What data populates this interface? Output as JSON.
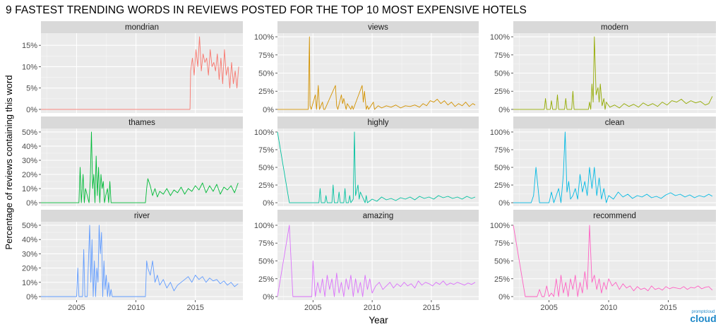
{
  "title": "9 FASTEST TRENDING WORDS IN REVIEWS POSTED FOR THE TOP 10 MOST EXPENSIVE HOTELS",
  "logo_text": "cloud",
  "logo_small": "promptcloud",
  "colors": {
    "panel_bg": "#ebebeb",
    "strip_bg": "#d9d9d9",
    "grid_major": "#ffffff",
    "axis_text": "#4d4d4d"
  },
  "chart_data": {
    "type": "line",
    "xlabel": "Year",
    "ylabel": "Percentage of reviews containing this word",
    "xlim": [
      2002,
      2019
    ],
    "x_ticks": [
      2005,
      2010,
      2015
    ],
    "x_tick_labels": [
      "2005",
      "2010",
      "2015"
    ],
    "facets": [
      {
        "name": "mondrian",
        "color": "#F8766D",
        "ylim": [
          0,
          17
        ],
        "y_ticks": [
          0,
          5,
          10,
          15
        ],
        "y_tick_labels": [
          "0%",
          "5%",
          "10%",
          "15%"
        ],
        "x": [
          2002,
          2014.55,
          2014.6,
          2014.75,
          2014.9,
          2015.05,
          2015.2,
          2015.35,
          2015.5,
          2015.65,
          2015.8,
          2015.95,
          2016.1,
          2016.25,
          2016.4,
          2016.55,
          2016.7,
          2016.85,
          2017,
          2017.15,
          2017.3,
          2017.45,
          2017.6,
          2017.75,
          2017.9,
          2018.05,
          2018.2,
          2018.35,
          2018.5,
          2018.65
        ],
        "y": [
          0,
          0,
          9,
          12,
          8,
          14,
          10,
          17,
          9,
          13,
          11,
          12,
          8,
          14,
          10,
          11,
          9,
          13,
          7,
          12,
          6,
          14,
          8,
          10,
          5,
          11,
          6,
          9,
          5,
          10
        ]
      },
      {
        "name": "views",
        "color": "#D39200",
        "ylim": [
          0,
          100
        ],
        "y_ticks": [
          0,
          25,
          50,
          75,
          100
        ],
        "y_tick_labels": [
          "0%",
          "25%",
          "50%",
          "75%",
          "100%"
        ],
        "x": [
          2002,
          2004.6,
          2004.7,
          2004.75,
          2004.85,
          2005.2,
          2005.3,
          2005.45,
          2005.55,
          2005.8,
          2005.9,
          2006,
          2006.9,
          2007,
          2007.1,
          2007.4,
          2007.5,
          2007.6,
          2007.8,
          2007.9,
          2008.2,
          2008.3,
          2008.4,
          2009.15,
          2009.25,
          2009.35,
          2009.5,
          2009.6,
          2009.7,
          2010.1,
          2010.2,
          2010.5,
          2010.8,
          2011.2,
          2011.6,
          2012,
          2012.4,
          2012.8,
          2013.2,
          2013.6,
          2014,
          2014.3,
          2014.6,
          2014.9,
          2015.2,
          2015.5,
          2015.8,
          2016.1,
          2016.4,
          2016.7,
          2017,
          2017.3,
          2017.6,
          2017.9,
          2018.2,
          2018.5,
          2018.7
        ],
        "y": [
          0,
          0,
          100,
          5,
          0,
          20,
          0,
          33,
          0,
          10,
          0,
          0,
          33,
          5,
          0,
          20,
          8,
          15,
          0,
          8,
          0,
          5,
          0,
          33,
          10,
          25,
          0,
          5,
          0,
          10,
          0,
          5,
          2,
          5,
          3,
          6,
          2,
          5,
          4,
          6,
          3,
          8,
          5,
          12,
          10,
          14,
          8,
          12,
          6,
          10,
          4,
          8,
          5,
          10,
          4,
          8,
          6
        ]
      },
      {
        "name": "modern",
        "color": "#93AA00",
        "ylim": [
          0,
          100
        ],
        "y_ticks": [
          0,
          25,
          50,
          75,
          100
        ],
        "y_tick_labels": [
          "0%",
          "25%",
          "50%",
          "75%",
          "100%"
        ],
        "x": [
          2002,
          2004.6,
          2004.7,
          2004.8,
          2005.1,
          2005.2,
          2005.3,
          2005.6,
          2005.7,
          2005.8,
          2006.3,
          2006.4,
          2006.5,
          2006.9,
          2007,
          2007.1,
          2008.3,
          2008.4,
          2008.5,
          2008.6,
          2008.7,
          2008.8,
          2008.95,
          2009.1,
          2009.2,
          2009.3,
          2009.45,
          2009.6,
          2009.7,
          2009.8,
          2010.1,
          2010.5,
          2010.9,
          2011.3,
          2011.7,
          2012.1,
          2012.5,
          2012.9,
          2013.3,
          2013.7,
          2014.1,
          2014.5,
          2014.9,
          2015.3,
          2015.7,
          2016.1,
          2016.5,
          2016.9,
          2017.3,
          2017.7,
          2018.1,
          2018.4,
          2018.7
        ],
        "y": [
          0,
          0,
          15,
          0,
          0,
          12,
          0,
          0,
          20,
          0,
          0,
          15,
          0,
          0,
          25,
          0,
          0,
          10,
          0,
          35,
          10,
          100,
          20,
          30,
          10,
          35,
          5,
          15,
          0,
          10,
          3,
          6,
          2,
          8,
          4,
          7,
          3,
          9,
          5,
          8,
          4,
          10,
          6,
          12,
          10,
          14,
          8,
          12,
          9,
          11,
          6,
          8,
          18
        ]
      },
      {
        "name": "thames",
        "color": "#00BA38",
        "ylim": [
          0,
          50
        ],
        "y_ticks": [
          0,
          10,
          20,
          30,
          40,
          50
        ],
        "y_tick_labels": [
          "0%",
          "10%",
          "20%",
          "30%",
          "40%",
          "50%"
        ],
        "x": [
          2002,
          2005.2,
          2005.3,
          2005.4,
          2005.55,
          2005.65,
          2005.75,
          2006.05,
          2006.15,
          2006.25,
          2006.35,
          2006.45,
          2006.55,
          2006.65,
          2006.75,
          2006.85,
          2006.95,
          2007.05,
          2007.15,
          2007.25,
          2007.35,
          2007.45,
          2007.6,
          2007.7,
          2007.8,
          2007.9,
          2008.1,
          2010.8,
          2010.9,
          2011,
          2011.2,
          2011.4,
          2011.6,
          2011.8,
          2012,
          2012.3,
          2012.6,
          2012.9,
          2013.2,
          2013.5,
          2013.8,
          2014.1,
          2014.4,
          2014.7,
          2015,
          2015.3,
          2015.6,
          2015.9,
          2016.2,
          2016.5,
          2016.8,
          2017.1,
          2017.4,
          2017.7,
          2018,
          2018.3,
          2018.6
        ],
        "y": [
          0,
          0,
          25,
          0,
          20,
          0,
          10,
          0,
          15,
          50,
          10,
          20,
          0,
          33,
          5,
          25,
          0,
          20,
          10,
          15,
          0,
          5,
          10,
          0,
          15,
          0,
          0,
          0,
          10,
          17,
          12,
          5,
          10,
          4,
          8,
          6,
          10,
          5,
          9,
          7,
          11,
          6,
          10,
          8,
          12,
          9,
          14,
          7,
          12,
          8,
          13,
          6,
          11,
          9,
          12,
          7,
          14
        ]
      },
      {
        "name": "highly",
        "color": "#00C19F",
        "ylim": [
          0,
          100
        ],
        "y_ticks": [
          0,
          25,
          50,
          75,
          100
        ],
        "y_tick_labels": [
          "0%",
          "25%",
          "50%",
          "75%",
          "100%"
        ],
        "x": [
          2002,
          2003,
          2005.5,
          2005.6,
          2005.7,
          2006,
          2006.1,
          2006.2,
          2006.6,
          2006.7,
          2006.8,
          2007.1,
          2007.2,
          2007.3,
          2007.6,
          2007.7,
          2007.8,
          2008,
          2008.1,
          2008.2,
          2008.4,
          2008.5,
          2008.6,
          2008.8,
          2008.9,
          2009,
          2009.4,
          2009.5,
          2009.6,
          2010,
          2010.4,
          2010.8,
          2011.2,
          2011.6,
          2012,
          2012.4,
          2012.8,
          2013.2,
          2013.6,
          2014,
          2014.4,
          2014.8,
          2015.2,
          2015.6,
          2016,
          2016.4,
          2016.8,
          2017.2,
          2017.6,
          2018,
          2018.4,
          2018.7
        ],
        "y": [
          100,
          0,
          0,
          20,
          0,
          0,
          10,
          0,
          0,
          25,
          0,
          0,
          15,
          0,
          0,
          20,
          0,
          0,
          10,
          0,
          5,
          100,
          10,
          25,
          5,
          15,
          0,
          10,
          0,
          5,
          2,
          8,
          4,
          6,
          3,
          7,
          5,
          8,
          4,
          9,
          6,
          8,
          5,
          10,
          7,
          9,
          6,
          8,
          5,
          9,
          6,
          8
        ]
      },
      {
        "name": "clean",
        "color": "#00B9E3",
        "ylim": [
          0,
          100
        ],
        "y_ticks": [
          0,
          25,
          50,
          75,
          100
        ],
        "y_tick_labels": [
          "0%",
          "25%",
          "50%",
          "75%",
          "100%"
        ],
        "x": [
          2002,
          2003.5,
          2003.7,
          2003.9,
          2004.2,
          2005,
          2005.2,
          2005.4,
          2005.6,
          2005.8,
          2006,
          2006.2,
          2006.35,
          2006.5,
          2006.65,
          2006.8,
          2007,
          2007.2,
          2007.4,
          2007.6,
          2007.8,
          2008,
          2008.2,
          2008.4,
          2008.6,
          2008.8,
          2009,
          2009.2,
          2009.4,
          2009.6,
          2009.8,
          2010,
          2010.4,
          2010.8,
          2011.2,
          2011.6,
          2012,
          2012.4,
          2012.8,
          2013.2,
          2013.6,
          2014,
          2014.4,
          2014.8,
          2015.2,
          2015.6,
          2016,
          2016.4,
          2016.8,
          2017.2,
          2017.6,
          2018,
          2018.4,
          2018.7
        ],
        "y": [
          0,
          0,
          10,
          50,
          0,
          0,
          15,
          0,
          10,
          20,
          0,
          40,
          100,
          15,
          30,
          5,
          10,
          20,
          5,
          40,
          15,
          30,
          10,
          50,
          20,
          50,
          10,
          35,
          5,
          20,
          0,
          10,
          5,
          15,
          8,
          12,
          6,
          10,
          8,
          12,
          7,
          9,
          6,
          11,
          14,
          10,
          12,
          8,
          11,
          7,
          10,
          8,
          12,
          9
        ]
      },
      {
        "name": "river",
        "color": "#619CFF",
        "ylim": [
          0,
          50
        ],
        "y_ticks": [
          0,
          10,
          20,
          30,
          40,
          50
        ],
        "y_tick_labels": [
          "0%",
          "10%",
          "20%",
          "30%",
          "40%",
          "50%"
        ],
        "x": [
          2002,
          2005,
          2005.1,
          2005.2,
          2005.5,
          2005.6,
          2005.7,
          2005.9,
          2006,
          2006.1,
          2006.2,
          2006.3,
          2006.4,
          2006.5,
          2006.6,
          2006.7,
          2006.8,
          2006.9,
          2007,
          2007.1,
          2007.2,
          2007.3,
          2007.4,
          2007.5,
          2007.6,
          2007.7,
          2007.8,
          2007.9,
          2008,
          2010.8,
          2010.9,
          2011,
          2011.2,
          2011.4,
          2011.6,
          2011.8,
          2012,
          2012.3,
          2012.6,
          2012.9,
          2013.2,
          2013.5,
          2013.8,
          2014.1,
          2014.4,
          2014.7,
          2015,
          2015.3,
          2015.6,
          2015.9,
          2016.2,
          2016.5,
          2016.8,
          2017.1,
          2017.4,
          2017.7,
          2018,
          2018.3,
          2018.6
        ],
        "y": [
          0,
          0,
          20,
          0,
          0,
          33,
          0,
          0,
          25,
          50,
          10,
          40,
          0,
          25,
          0,
          20,
          10,
          50,
          30,
          45,
          0,
          25,
          5,
          15,
          0,
          10,
          0,
          5,
          0,
          0,
          25,
          20,
          15,
          25,
          10,
          15,
          8,
          12,
          6,
          10,
          4,
          8,
          10,
          12,
          14,
          10,
          15,
          12,
          14,
          10,
          13,
          11,
          12,
          9,
          11,
          8,
          10,
          7,
          9
        ]
      },
      {
        "name": "amazing",
        "color": "#DB72FB",
        "ylim": [
          0,
          100
        ],
        "y_ticks": [
          0,
          25,
          50,
          75,
          100
        ],
        "y_tick_labels": [
          "0%",
          "25%",
          "50%",
          "75%",
          "100%"
        ],
        "x": [
          2002,
          2003,
          2003.3,
          2004.9,
          2005,
          2005.2,
          2005.4,
          2005.6,
          2005.8,
          2006,
          2006.2,
          2006.4,
          2006.6,
          2006.8,
          2007,
          2007.2,
          2007.4,
          2007.6,
          2007.8,
          2008,
          2008.2,
          2008.4,
          2008.6,
          2008.8,
          2009,
          2009.2,
          2009.4,
          2009.6,
          2009.8,
          2010,
          2010.3,
          2010.6,
          2010.9,
          2011.2,
          2011.5,
          2011.8,
          2012.1,
          2012.4,
          2012.7,
          2013,
          2013.3,
          2013.6,
          2013.9,
          2014.2,
          2014.5,
          2014.8,
          2015.1,
          2015.4,
          2015.7,
          2016,
          2016.3,
          2016.6,
          2016.9,
          2017.2,
          2017.5,
          2017.8,
          2018.1,
          2018.4,
          2018.7
        ],
        "y": [
          0,
          100,
          0,
          0,
          50,
          0,
          20,
          5,
          25,
          0,
          30,
          10,
          25,
          0,
          33,
          5,
          20,
          0,
          25,
          10,
          30,
          0,
          25,
          5,
          20,
          0,
          30,
          10,
          25,
          5,
          15,
          20,
          10,
          15,
          20,
          12,
          18,
          14,
          20,
          15,
          18,
          12,
          22,
          16,
          20,
          18,
          15,
          20,
          17,
          22,
          16,
          19,
          17,
          20,
          18,
          16,
          19,
          17,
          20
        ]
      },
      {
        "name": "recommend",
        "color": "#FF61C3",
        "ylim": [
          0,
          100
        ],
        "y_ticks": [
          0,
          25,
          50,
          75,
          100
        ],
        "y_tick_labels": [
          "0%",
          "25%",
          "50%",
          "75%",
          "100%"
        ],
        "x": [
          2002,
          2003,
          2004,
          2004.2,
          2004.4,
          2004.6,
          2004.8,
          2005,
          2005.2,
          2005.4,
          2005.6,
          2005.8,
          2006,
          2006.2,
          2006.4,
          2006.6,
          2006.8,
          2007,
          2007.2,
          2007.4,
          2007.6,
          2007.8,
          2008,
          2008.2,
          2008.4,
          2008.6,
          2008.8,
          2009,
          2009.2,
          2009.4,
          2009.6,
          2009.8,
          2010,
          2010.3,
          2010.6,
          2010.9,
          2011.2,
          2011.5,
          2011.8,
          2012.1,
          2012.4,
          2012.7,
          2013,
          2013.3,
          2013.6,
          2013.9,
          2014.2,
          2014.5,
          2014.8,
          2015.1,
          2015.4,
          2015.7,
          2016,
          2016.3,
          2016.6,
          2016.9,
          2017.2,
          2017.5,
          2017.8,
          2018.1,
          2018.4,
          2018.7
        ],
        "y": [
          100,
          0,
          0,
          10,
          0,
          0,
          15,
          0,
          5,
          0,
          25,
          0,
          30,
          5,
          20,
          0,
          25,
          10,
          30,
          0,
          20,
          5,
          35,
          10,
          100,
          20,
          30,
          10,
          25,
          5,
          20,
          10,
          25,
          15,
          20,
          10,
          18,
          12,
          15,
          8,
          14,
          10,
          12,
          8,
          15,
          10,
          12,
          9,
          14,
          11,
          13,
          12,
          11,
          14,
          10,
          13,
          12,
          15,
          11,
          13,
          14,
          9
        ]
      }
    ]
  }
}
